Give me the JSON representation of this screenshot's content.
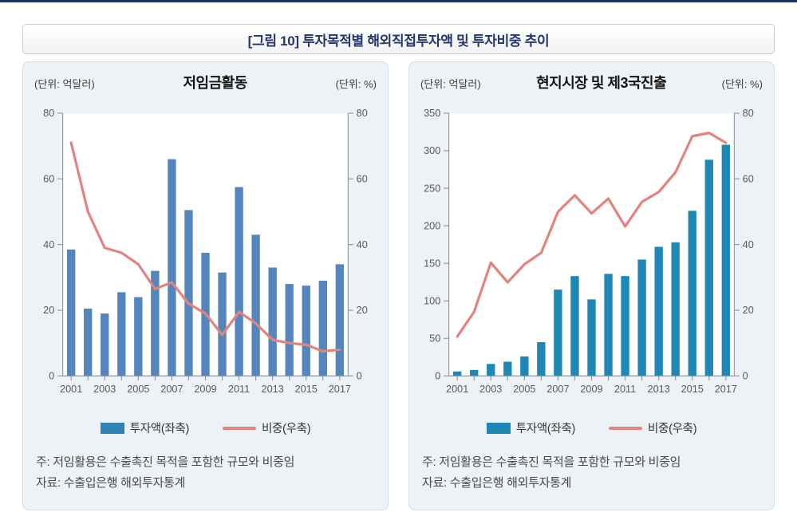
{
  "figure_title": "[그림 10] 투자목적별 해외직접투자액 및 투자비중 추이",
  "legend": {
    "bar_label": "투자액(좌축)",
    "line_label": "비중(우축)"
  },
  "notes": {
    "note": "주: 저임활용은 수출촉진 목적을 포함한 규모와 비중임",
    "source": "자료: 수출입은행 해외투자통계"
  },
  "colors": {
    "top_rule": "#20355e",
    "title_text": "#25356e",
    "panel_background": "#edf2f7",
    "axis": "#8f959b",
    "tick_label": "#5a5a5a",
    "line": "#e4837d"
  },
  "chart_data": [
    {
      "type": "bar",
      "title": "저임금활동",
      "left_unit": "(단위: 억달러)",
      "right_unit": "(단위: %)",
      "categories": [
        2001,
        2002,
        2003,
        2004,
        2005,
        2006,
        2007,
        2008,
        2009,
        2010,
        2011,
        2012,
        2013,
        2014,
        2015,
        2016,
        2017
      ],
      "x_tick_labels": [
        "2001",
        "2003",
        "2005",
        "2007",
        "2009",
        "2011",
        "2013",
        "2015",
        "2017"
      ],
      "series": [
        {
          "name": "투자액(좌축)",
          "type": "bar",
          "axis": "left",
          "values": [
            38.5,
            20.5,
            19,
            25.5,
            24,
            32,
            66,
            50.5,
            37.5,
            31.5,
            57.5,
            43,
            33,
            28,
            27.5,
            29,
            34
          ]
        },
        {
          "name": "비중(우축)",
          "type": "line",
          "axis": "right",
          "values": [
            71,
            50,
            39,
            37.5,
            34,
            26.5,
            28.5,
            22,
            19,
            12.5,
            19.5,
            16,
            11,
            10,
            9.5,
            7.5,
            8
          ]
        }
      ],
      "left_axis": {
        "min": 0,
        "max": 80,
        "ticks": [
          0,
          20,
          40,
          60,
          80
        ]
      },
      "right_axis": {
        "min": 0,
        "max": 80,
        "ticks": [
          0,
          20,
          40,
          60,
          80
        ]
      },
      "bar_color": "#5585bd",
      "legend_swatch_color": "#2f84b3",
      "line_color": "#e4837d",
      "grid": false,
      "legend_position": "bottom"
    },
    {
      "type": "bar",
      "title": "현지시장 및 제3국진출",
      "left_unit": "(단위: 억달러)",
      "right_unit": "(단위: %)",
      "categories": [
        2001,
        2002,
        2003,
        2004,
        2005,
        2006,
        2007,
        2008,
        2009,
        2010,
        2011,
        2012,
        2013,
        2014,
        2015,
        2016,
        2017
      ],
      "x_tick_labels": [
        "2001",
        "2003",
        "2005",
        "2007",
        "2009",
        "2011",
        "2013",
        "2015",
        "2017"
      ],
      "series": [
        {
          "name": "투자액(좌축)",
          "type": "bar",
          "axis": "left",
          "values": [
            6,
            8,
            16,
            19,
            26,
            45,
            115,
            133,
            102,
            136,
            133,
            155,
            172,
            178,
            220,
            288,
            308
          ]
        },
        {
          "name": "비중(우축)",
          "type": "line",
          "axis": "right",
          "values": [
            12,
            19.5,
            34.5,
            28.5,
            34,
            37.5,
            50,
            55,
            49.5,
            54,
            45.5,
            53,
            56,
            62,
            73,
            74,
            71
          ]
        }
      ],
      "left_axis": {
        "min": 0,
        "max": 350,
        "ticks": [
          0,
          50,
          100,
          150,
          200,
          250,
          300,
          350
        ]
      },
      "right_axis": {
        "min": 0,
        "max": 80,
        "ticks": [
          0,
          20,
          40,
          60,
          80
        ]
      },
      "bar_color": "#1e87b6",
      "legend_swatch_color": "#1e87b6",
      "line_color": "#e4837d",
      "grid": false,
      "legend_position": "bottom"
    }
  ]
}
